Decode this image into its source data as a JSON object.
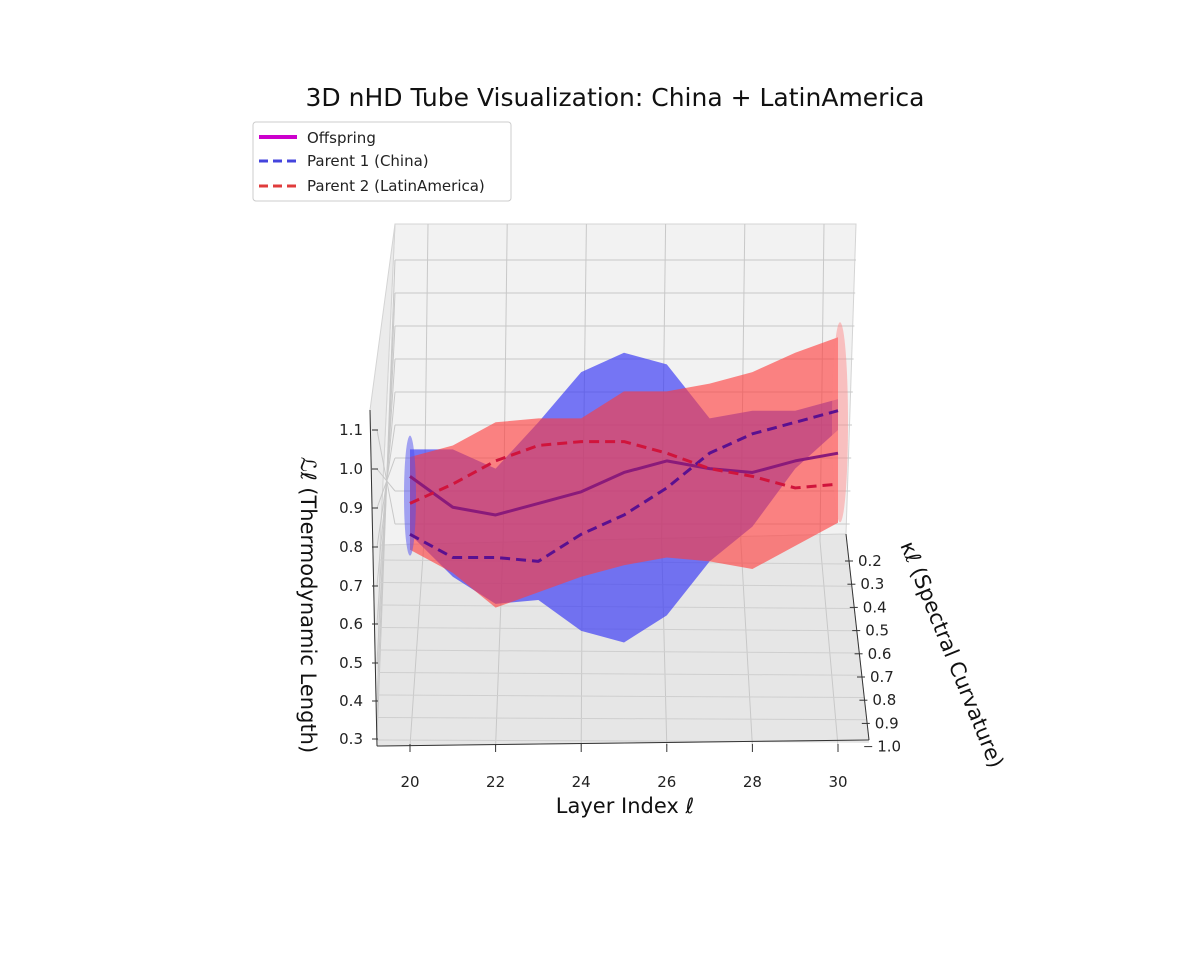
{
  "chart_data": {
    "type": "line",
    "title": "3D nHD Tube Visualization: China + LatinAmerica",
    "xlabel": "Layer Index ℓ",
    "ylabel": "κℓ (Spectral Curvature)",
    "zlabel": "ℒℓ (Thermodynamic Length)",
    "xlim": [
      19.2,
      30.5
    ],
    "ylim": [
      0.15,
      1.05
    ],
    "zlim": [
      0.3,
      1.15
    ],
    "x_ticks": [
      "20",
      "22",
      "24",
      "26",
      "28",
      "30"
    ],
    "y_ticks": [
      "0.2",
      "0.3",
      "0.4",
      "0.5",
      "0.6",
      "0.7",
      "0.8",
      "0.9",
      "1.0"
    ],
    "z_ticks": [
      "0.3",
      "0.4",
      "0.5",
      "0.6",
      "0.7",
      "0.8",
      "0.9",
      "1.0",
      "1.1"
    ],
    "x": [
      20,
      21,
      22,
      23,
      24,
      25,
      26,
      27,
      28,
      29,
      30
    ],
    "series": [
      {
        "name": "Offspring",
        "color": "#cc00cc",
        "style": "solid",
        "z": [
          0.98,
          0.9,
          0.88,
          0.91,
          0.94,
          0.99,
          1.02,
          1.0,
          0.99,
          1.02,
          1.04
        ]
      },
      {
        "name": "Parent 1 (China)",
        "color": "#4444dd",
        "style": "dashed",
        "z": [
          0.83,
          0.77,
          0.77,
          0.76,
          0.83,
          0.88,
          0.95,
          1.04,
          1.09,
          1.12,
          1.15
        ],
        "tube_upper": [
          1.05,
          1.05,
          1.0,
          1.12,
          1.25,
          1.3,
          1.27,
          1.13,
          1.15,
          1.15,
          1.18
        ],
        "tube_lower": [
          0.83,
          0.72,
          0.65,
          0.66,
          0.58,
          0.55,
          0.62,
          0.76,
          0.85,
          1.0,
          1.1
        ]
      },
      {
        "name": "Parent 2 (LatinAmerica)",
        "color": "#e03c3c",
        "style": "dashed",
        "z": [
          0.91,
          0.96,
          1.02,
          1.06,
          1.07,
          1.07,
          1.04,
          1.0,
          0.98,
          0.95,
          0.96
        ],
        "tube_upper": [
          1.03,
          1.06,
          1.12,
          1.13,
          1.13,
          1.2,
          1.2,
          1.22,
          1.25,
          1.3,
          1.34
        ],
        "tube_lower": [
          0.79,
          0.73,
          0.64,
          0.68,
          0.72,
          0.75,
          0.77,
          0.76,
          0.74,
          0.8,
          0.86
        ]
      }
    ],
    "legend_position": "upper-left",
    "grid": true
  }
}
